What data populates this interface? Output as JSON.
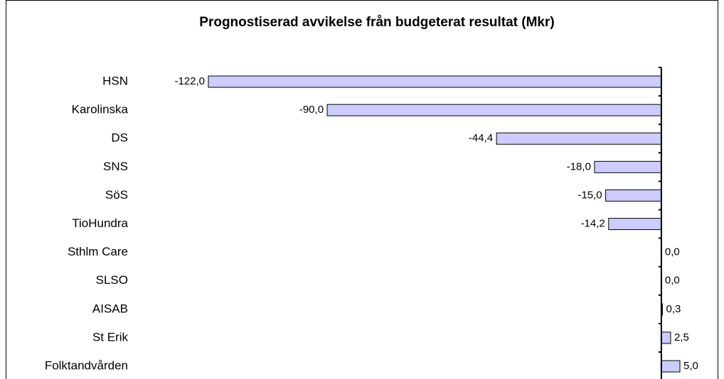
{
  "chart_data": {
    "type": "bar",
    "orientation": "horizontal",
    "title": "Prognostiserad avvikelse från budgeterat resultat (Mkr)",
    "categories": [
      "HSN",
      "Karolinska",
      "DS",
      "SNS",
      "SöS",
      "TioHundra",
      "Sthlm Care",
      "SLSO",
      "AISAB",
      "St Erik",
      "Folktandvården"
    ],
    "values": [
      -122.0,
      -90.0,
      -44.4,
      -18.0,
      -15.0,
      -14.2,
      0.0,
      0.0,
      0.3,
      2.5,
      5.0
    ],
    "value_labels": [
      "-122,0",
      "-90,0",
      "-44,4",
      "-18,0",
      "-15,0",
      "-14,2",
      "0,0",
      "0,0",
      "0,3",
      "2,5",
      "5,0"
    ],
    "color": "#ccccff",
    "xlim": [
      -122,
      5
    ]
  }
}
